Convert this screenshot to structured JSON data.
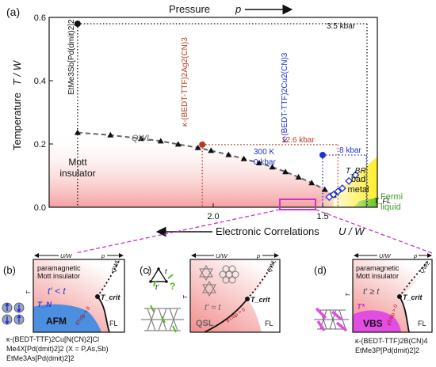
{
  "chart_data": {
    "type": "scatter",
    "panel_labels": [
      "(a)",
      "(b)",
      "(c)",
      "(d)"
    ],
    "top_axis_label": "Pressure",
    "top_axis_symbol": "p",
    "xlabel": "Electronic Correlations",
    "xlabel_symbol": "U / W",
    "ylabel": "Temperature",
    "ylabel_symbol": "T / W",
    "x_reversed": true,
    "xlim": [
      2.75,
      1.25
    ],
    "ylim": [
      0,
      0.6
    ],
    "x_ticks": [
      2.0,
      1.5
    ],
    "x_tick_labels": [
      "2.0",
      "1.5"
    ],
    "y_ticks": [
      0.0,
      0.2,
      0.4,
      0.6
    ],
    "y_tick_labels": [
      "0.0",
      "0.2",
      "0.4",
      "0.6"
    ],
    "regions": [
      {
        "label_line1": "Mott",
        "label_line2": "insulator",
        "color": "#f3a3a3"
      },
      {
        "label_line1": "bad",
        "label_line2": "metal",
        "color": "#fff27a"
      },
      {
        "label_line1": "Fermi",
        "label_line2": "liquid",
        "color": "#7ccc34"
      }
    ],
    "qwl_label": "QWL",
    "qwl_series": [
      {
        "x": 2.62,
        "y": 0.236
      },
      {
        "x": 2.47,
        "y": 0.228
      },
      {
        "x": 2.33,
        "y": 0.217
      },
      {
        "x": 2.24,
        "y": 0.209
      },
      {
        "x": 2.16,
        "y": 0.199
      },
      {
        "x": 2.07,
        "y": 0.188
      },
      {
        "x": 2.01,
        "y": 0.179
      },
      {
        "x": 1.93,
        "y": 0.166
      },
      {
        "x": 1.86,
        "y": 0.153
      },
      {
        "x": 1.79,
        "y": 0.14
      },
      {
        "x": 1.73,
        "y": 0.127
      },
      {
        "x": 1.67,
        "y": 0.112
      },
      {
        "x": 1.61,
        "y": 0.095
      },
      {
        "x": 1.55,
        "y": 0.077
      },
      {
        "x": 1.49,
        "y": 0.056
      },
      {
        "x": 1.45,
        "y": 0.038
      }
    ],
    "materials": [
      {
        "name": "EtMe3Sb[Pd(dmit)2]2",
        "x": 2.62,
        "y_top": 0.58,
        "color": "#111111",
        "pressure_label": "3.5 kbar"
      },
      {
        "name": "κ-(BEDT-TTF)2Ag2(CN)3",
        "x": 2.05,
        "y_top": 0.198,
        "color": "#b83a1e",
        "pressure_label": "12.6 kbar"
      },
      {
        "name": "κ-(BEDT-TTF)2Cu2(CN)3",
        "x": 1.5,
        "y_top": 0.165,
        "color": "#1f2fd6",
        "pressure_label": "8 kbar",
        "labels": [
          "300 K",
          "0 kbar"
        ]
      }
    ],
    "bad_metal_points": [
      {
        "x": 1.45,
        "y": 0.04
      },
      {
        "x": 1.41,
        "y": 0.06
      },
      {
        "x": 1.38,
        "y": 0.083
      },
      {
        "x": 1.35,
        "y": 0.102
      },
      {
        "x": 1.43,
        "y": 0.05
      },
      {
        "x": 1.47,
        "y": 0.032
      }
    ],
    "t_br_label": "T_BR",
    "t_fl_label": "T_FL",
    "subpanels": [
      {
        "id": "b",
        "top_left": "U/W",
        "top_right": "p",
        "region": "paramagnetic Mott insulator",
        "condition": "t' < t",
        "tn": "T_N",
        "ground": "AFM",
        "metal": "FL",
        "tcrit": "T_crit",
        "qwl": "QWL",
        "slope": "dT/dp > 0",
        "y_axis": "T",
        "caption": [
          "κ-(BEDT-TTF)2Cu[N(CN)2]Cl",
          "Me4X[Pd(dmit)2]2 (X = P,As,Sb)",
          "EtMe3As[Pd(dmit)2]2"
        ]
      },
      {
        "id": "c",
        "top_left": "U/W",
        "top_right": "p",
        "condition": "t' ≈ t",
        "ground": "QSL",
        "metal": "FL",
        "tcrit": "T_crit",
        "qwl": "QWL",
        "slope": "dT/dp > 0",
        "y_axis": "T",
        "lattice_t": "t",
        "lattice_tprime": "t'",
        "question": "?"
      },
      {
        "id": "d",
        "top_left": "U/W",
        "top_right": "p",
        "region": "paramagnetic Mott insulator",
        "condition": "t' ≥ t",
        "tstar": "T*",
        "ground": "VBS",
        "metal": "FL",
        "tcrit": "T_crit",
        "qwl": "QWL",
        "slope": "dT/dp > 0",
        "y_axis": "T",
        "caption": [
          "κ-(BEDT-TTF)2B(CN)4",
          "EtMe3P[Pd(dmit)2]2"
        ]
      }
    ]
  }
}
